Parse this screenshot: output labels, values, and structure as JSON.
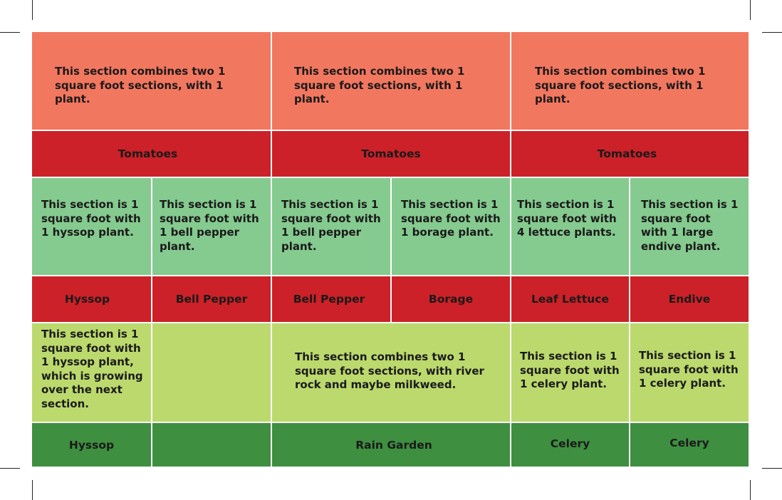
{
  "colors": {
    "combined_section_bg": "#f2775f",
    "label_red": "#cc2128",
    "single_section_bg": "#85ca8f",
    "lower_section_bg": "#bcd96d",
    "label_green": "#3e8f40"
  },
  "row1": {
    "desc": [
      "This section combines two 1 square foot sections, with 1 plant.",
      "This section combines two 1 square foot sections, with 1 plant.",
      "This section combines two 1 square foot sections, with 1 plant."
    ],
    "labels": [
      "Tomatoes",
      "Tomatoes",
      "Tomatoes"
    ]
  },
  "row2": {
    "desc": [
      "This section is 1 square foot with 1 hyssop plant.",
      "This section is 1 square foot with 1 bell pepper plant.",
      "This section is 1 square foot with 1 bell pepper plant.",
      "This section is 1 square foot with 1 borage plant.",
      "This section is 1 square foot with 4 lettuce plants.",
      "This section is 1 square foot with 1 large endive plant."
    ],
    "labels": [
      "Hyssop",
      "Bell Pepper",
      "Bell Pepper",
      "Borage",
      "Leaf Lettuce",
      "Endive"
    ]
  },
  "row3": {
    "desc": [
      "This section is 1 square foot with 1 hyssop plant, which is growing over the next section.",
      "",
      "This section combines two 1 square foot sections, with river rock and maybe milkweed.",
      "This section is 1 square foot with 1 celery plant.",
      "This section is 1 square foot with 1 celery plant."
    ],
    "labels": [
      "Hyssop",
      "",
      "Rain Garden",
      "Celery",
      "Celery"
    ]
  }
}
